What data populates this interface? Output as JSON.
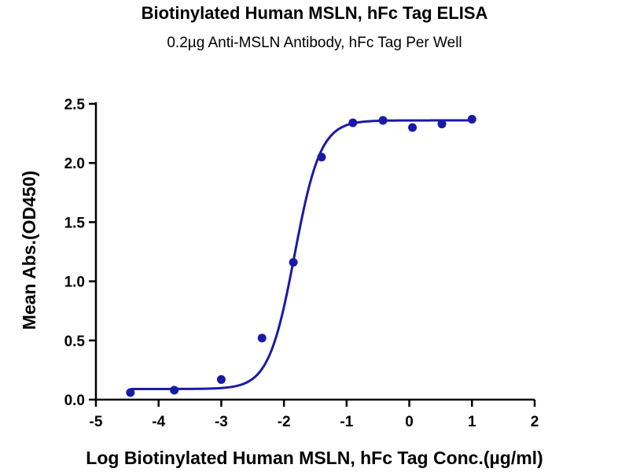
{
  "chart_data": {
    "type": "scatter",
    "title": "Biotinylated Human MSLN, hFc Tag ELISA",
    "subtitle": "0.2µg Anti-MSLN Antibody, hFc Tag Per Well",
    "xlabel": "Log Biotinylated Human MSLN, hFc Tag Conc.(µg/ml)",
    "ylabel": "Mean Abs.(OD450)",
    "xlim": [
      -5,
      2
    ],
    "ylim": [
      0,
      2.5
    ],
    "x_ticks": [
      "-5",
      "-4",
      "-3",
      "-2",
      "-1",
      "0",
      "1",
      "2"
    ],
    "y_ticks": [
      "0.0",
      "0.5",
      "1.0",
      "1.5",
      "2.0",
      "2.5"
    ],
    "grid": false,
    "series": [
      {
        "points": [
          {
            "x": -4.45,
            "y": 0.06
          },
          {
            "x": -3.75,
            "y": 0.08
          },
          {
            "x": -3.0,
            "y": 0.17
          },
          {
            "x": -2.35,
            "y": 0.52
          },
          {
            "x": -1.85,
            "y": 1.16
          },
          {
            "x": -1.4,
            "y": 2.05
          },
          {
            "x": -0.9,
            "y": 2.34
          },
          {
            "x": -0.42,
            "y": 2.36
          },
          {
            "x": 0.05,
            "y": 2.3
          },
          {
            "x": 0.52,
            "y": 2.33
          },
          {
            "x": 1.0,
            "y": 2.37
          }
        ],
        "fit": {
          "model": "4PL",
          "bottom": 0.09,
          "top": 2.36,
          "log_ec50": -1.83,
          "hill_slope": 2.1,
          "x_range": [
            -4.45,
            1.0
          ]
        }
      }
    ],
    "colors": {
      "series": "#1a1aa8",
      "axis": "#000000"
    }
  }
}
